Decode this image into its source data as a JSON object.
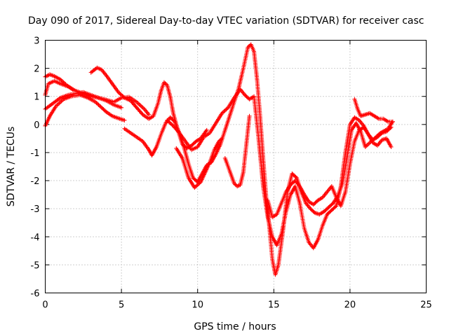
{
  "chart_data": {
    "type": "scatter",
    "title": "Day 090 of 2017, Sidereal Day-to-day VTEC variation (SDTVAR) for receiver casc",
    "xlabel": "GPS time / hours",
    "ylabel": "SDTVAR / TECUs",
    "xlim": [
      0,
      25
    ],
    "ylim": [
      -6,
      3
    ],
    "x_ticks": [
      "0",
      "5",
      "10",
      "15",
      "20",
      "25"
    ],
    "y_ticks": [
      "3",
      "2",
      "1",
      "0",
      "-1",
      "-2",
      "-3",
      "-4",
      "-5",
      "-6"
    ],
    "grid": true,
    "legend": "none",
    "marker": "plus",
    "color": "#ff0000",
    "series": [
      {
        "x": [
          0,
          0.3,
          0.7,
          1.2,
          1.7,
          2.3,
          2.8,
          3.3,
          3.7,
          4.0,
          4.4,
          4.8,
          5.2
        ],
        "y": [
          -0.05,
          0.3,
          0.65,
          0.9,
          1.0,
          1.05,
          0.95,
          0.8,
          0.6,
          0.45,
          0.3,
          0.22,
          0.15
        ]
      },
      {
        "x": [
          0,
          0.2,
          0.6,
          1.0,
          1.5,
          2.0,
          2.5,
          3.0,
          3.5,
          4.0,
          4.5,
          5.0,
          5.5,
          6.0,
          6.5,
          6.8
        ],
        "y": [
          1.05,
          1.45,
          1.55,
          1.45,
          1.35,
          1.2,
          1.1,
          1.0,
          0.95,
          0.88,
          0.8,
          0.95,
          0.98,
          0.8,
          0.55,
          0.35
        ]
      },
      {
        "x": [
          0,
          0.5,
          1.0,
          1.5,
          2.0,
          2.5,
          3.0,
          3.5,
          4.0,
          4.5,
          5.0
        ],
        "y": [
          0.55,
          0.75,
          0.95,
          1.05,
          1.1,
          1.15,
          1.05,
          0.95,
          0.85,
          0.7,
          0.6
        ]
      },
      {
        "x": [
          0,
          0.3,
          0.6,
          1.0,
          1.4,
          1.8
        ],
        "y": [
          1.7,
          1.78,
          1.72,
          1.6,
          1.4,
          1.25
        ]
      },
      {
        "x": [
          3.0,
          3.4,
          3.7,
          4.0,
          4.4,
          4.8,
          5.2,
          5.6,
          6.0,
          6.4,
          6.8,
          7.1,
          7.4,
          7.6,
          7.8,
          8.0,
          8.2,
          8.4,
          8.7,
          9.0,
          9.3,
          9.6,
          9.9,
          10.2,
          10.4,
          10.6
        ],
        "y": [
          1.85,
          2.02,
          1.95,
          1.75,
          1.45,
          1.15,
          0.95,
          0.85,
          0.6,
          0.35,
          0.2,
          0.3,
          0.75,
          1.2,
          1.5,
          1.4,
          1.0,
          0.4,
          -0.2,
          -0.7,
          -0.85,
          -0.75,
          -0.6,
          -0.5,
          -0.35,
          -0.2
        ]
      },
      {
        "x": [
          5.2,
          5.6,
          6.0,
          6.4,
          6.8,
          7.0,
          7.3,
          7.6,
          7.9,
          8.2,
          8.5,
          8.8,
          9.1,
          9.4,
          9.7,
          10.0,
          10.3,
          10.6,
          10.9,
          11.2,
          11.5,
          11.8,
          12.1,
          12.4,
          12.7,
          13.0,
          13.3,
          13.5,
          13.7,
          13.9,
          14.1,
          14.3,
          14.5,
          14.7,
          14.9,
          15.1,
          15.3,
          15.6,
          15.9,
          16.2,
          16.5,
          16.8,
          17.1,
          17.4,
          17.7,
          18.0,
          18.3,
          18.6,
          18.9,
          19.2,
          19.5,
          19.8,
          20.1,
          20.4,
          20.7,
          21.0,
          21.5,
          22.0,
          22.5,
          22.8
        ],
        "y": [
          -0.15,
          -0.3,
          -0.45,
          -0.6,
          -0.9,
          -1.1,
          -0.8,
          -0.35,
          0.05,
          0.25,
          0.1,
          -0.3,
          -0.8,
          -1.4,
          -1.9,
          -2.05,
          -1.75,
          -1.45,
          -1.35,
          -1.05,
          -0.7,
          -0.2,
          0.3,
          0.8,
          1.3,
          2.0,
          2.75,
          2.85,
          2.6,
          1.6,
          0.3,
          -1.2,
          -2.6,
          -3.6,
          -4.8,
          -5.35,
          -5.0,
          -3.8,
          -2.4,
          -1.75,
          -1.9,
          -2.4,
          -2.8,
          -3.0,
          -3.15,
          -3.2,
          -3.1,
          -2.95,
          -2.8,
          -2.55,
          -2.1,
          -1.2,
          -0.2,
          0.05,
          -0.25,
          -0.8,
          -0.55,
          -0.3,
          -0.15,
          0.1
        ]
      },
      {
        "x": [
          8.0,
          8.4,
          8.8,
          9.2,
          9.6,
          10.0,
          10.4,
          10.8,
          11.2,
          11.6,
          12.0,
          12.4,
          12.8,
          13.1,
          13.4,
          13.7,
          14.0,
          14.3,
          14.6,
          14.9,
          15.2,
          15.5,
          15.8,
          16.1,
          16.4,
          16.7,
          17.0,
          17.3,
          17.6,
          17.9,
          18.2,
          18.5,
          18.8,
          19.1,
          19.4,
          19.7,
          20.0,
          20.3,
          20.6,
          20.9,
          21.2,
          21.5,
          21.8,
          22.1,
          22.4,
          22.7
        ],
        "y": [
          0.15,
          -0.05,
          -0.3,
          -0.6,
          -0.9,
          -0.8,
          -0.45,
          -0.3,
          0.05,
          0.4,
          0.6,
          0.95,
          1.25,
          1.05,
          0.9,
          1.0,
          -0.5,
          -2.2,
          -3.3,
          -4.0,
          -4.3,
          -3.9,
          -3.1,
          -2.5,
          -2.2,
          -2.8,
          -3.7,
          -4.2,
          -4.4,
          -4.1,
          -3.6,
          -3.2,
          -3.05,
          -2.9,
          -2.2,
          -1.0,
          0.0,
          0.25,
          0.15,
          -0.05,
          -0.35,
          -0.55,
          -0.45,
          -0.3,
          -0.25,
          -0.1
        ]
      },
      {
        "x": [
          8.6,
          9.0,
          9.4,
          9.8,
          10.2,
          10.5,
          10.8,
          11.1,
          11.4,
          11.6
        ],
        "y": [
          -0.85,
          -1.2,
          -1.9,
          -2.25,
          -2.05,
          -1.7,
          -1.35,
          -0.9,
          -0.6,
          -0.5
        ]
      },
      {
        "x": [
          11.8,
          12.0,
          12.2,
          12.4,
          12.6,
          12.8,
          13.0,
          13.2,
          13.4
        ],
        "y": [
          -1.2,
          -1.5,
          -1.8,
          -2.1,
          -2.2,
          -2.15,
          -1.7,
          -0.7,
          0.3
        ]
      },
      {
        "x": [
          14.6,
          14.9,
          15.2,
          15.5,
          15.8,
          16.1,
          16.4,
          16.7,
          17.0,
          17.3,
          17.6,
          17.9,
          18.2,
          18.5,
          18.8,
          19.1,
          19.4,
          19.7,
          20.0,
          20.3,
          20.6,
          20.9,
          21.2,
          21.5,
          21.8,
          22.1,
          22.4,
          22.7
        ],
        "y": [
          -2.7,
          -3.3,
          -3.2,
          -2.8,
          -2.4,
          -2.15,
          -2.0,
          -2.2,
          -2.5,
          -2.75,
          -2.85,
          -2.7,
          -2.6,
          -2.4,
          -2.2,
          -2.6,
          -2.9,
          -2.4,
          -1.4,
          -0.6,
          -0.2,
          -0.1,
          -0.35,
          -0.65,
          -0.75,
          -0.55,
          -0.5,
          -0.8
        ]
      },
      {
        "x": [
          20.3,
          20.5,
          20.7,
          21.0,
          21.3,
          21.6,
          21.9,
          22.2,
          22.5,
          22.8
        ],
        "y": [
          0.9,
          0.55,
          0.3,
          0.35,
          0.4,
          0.3,
          0.2,
          0.2,
          0.1,
          0.1
        ]
      }
    ]
  }
}
